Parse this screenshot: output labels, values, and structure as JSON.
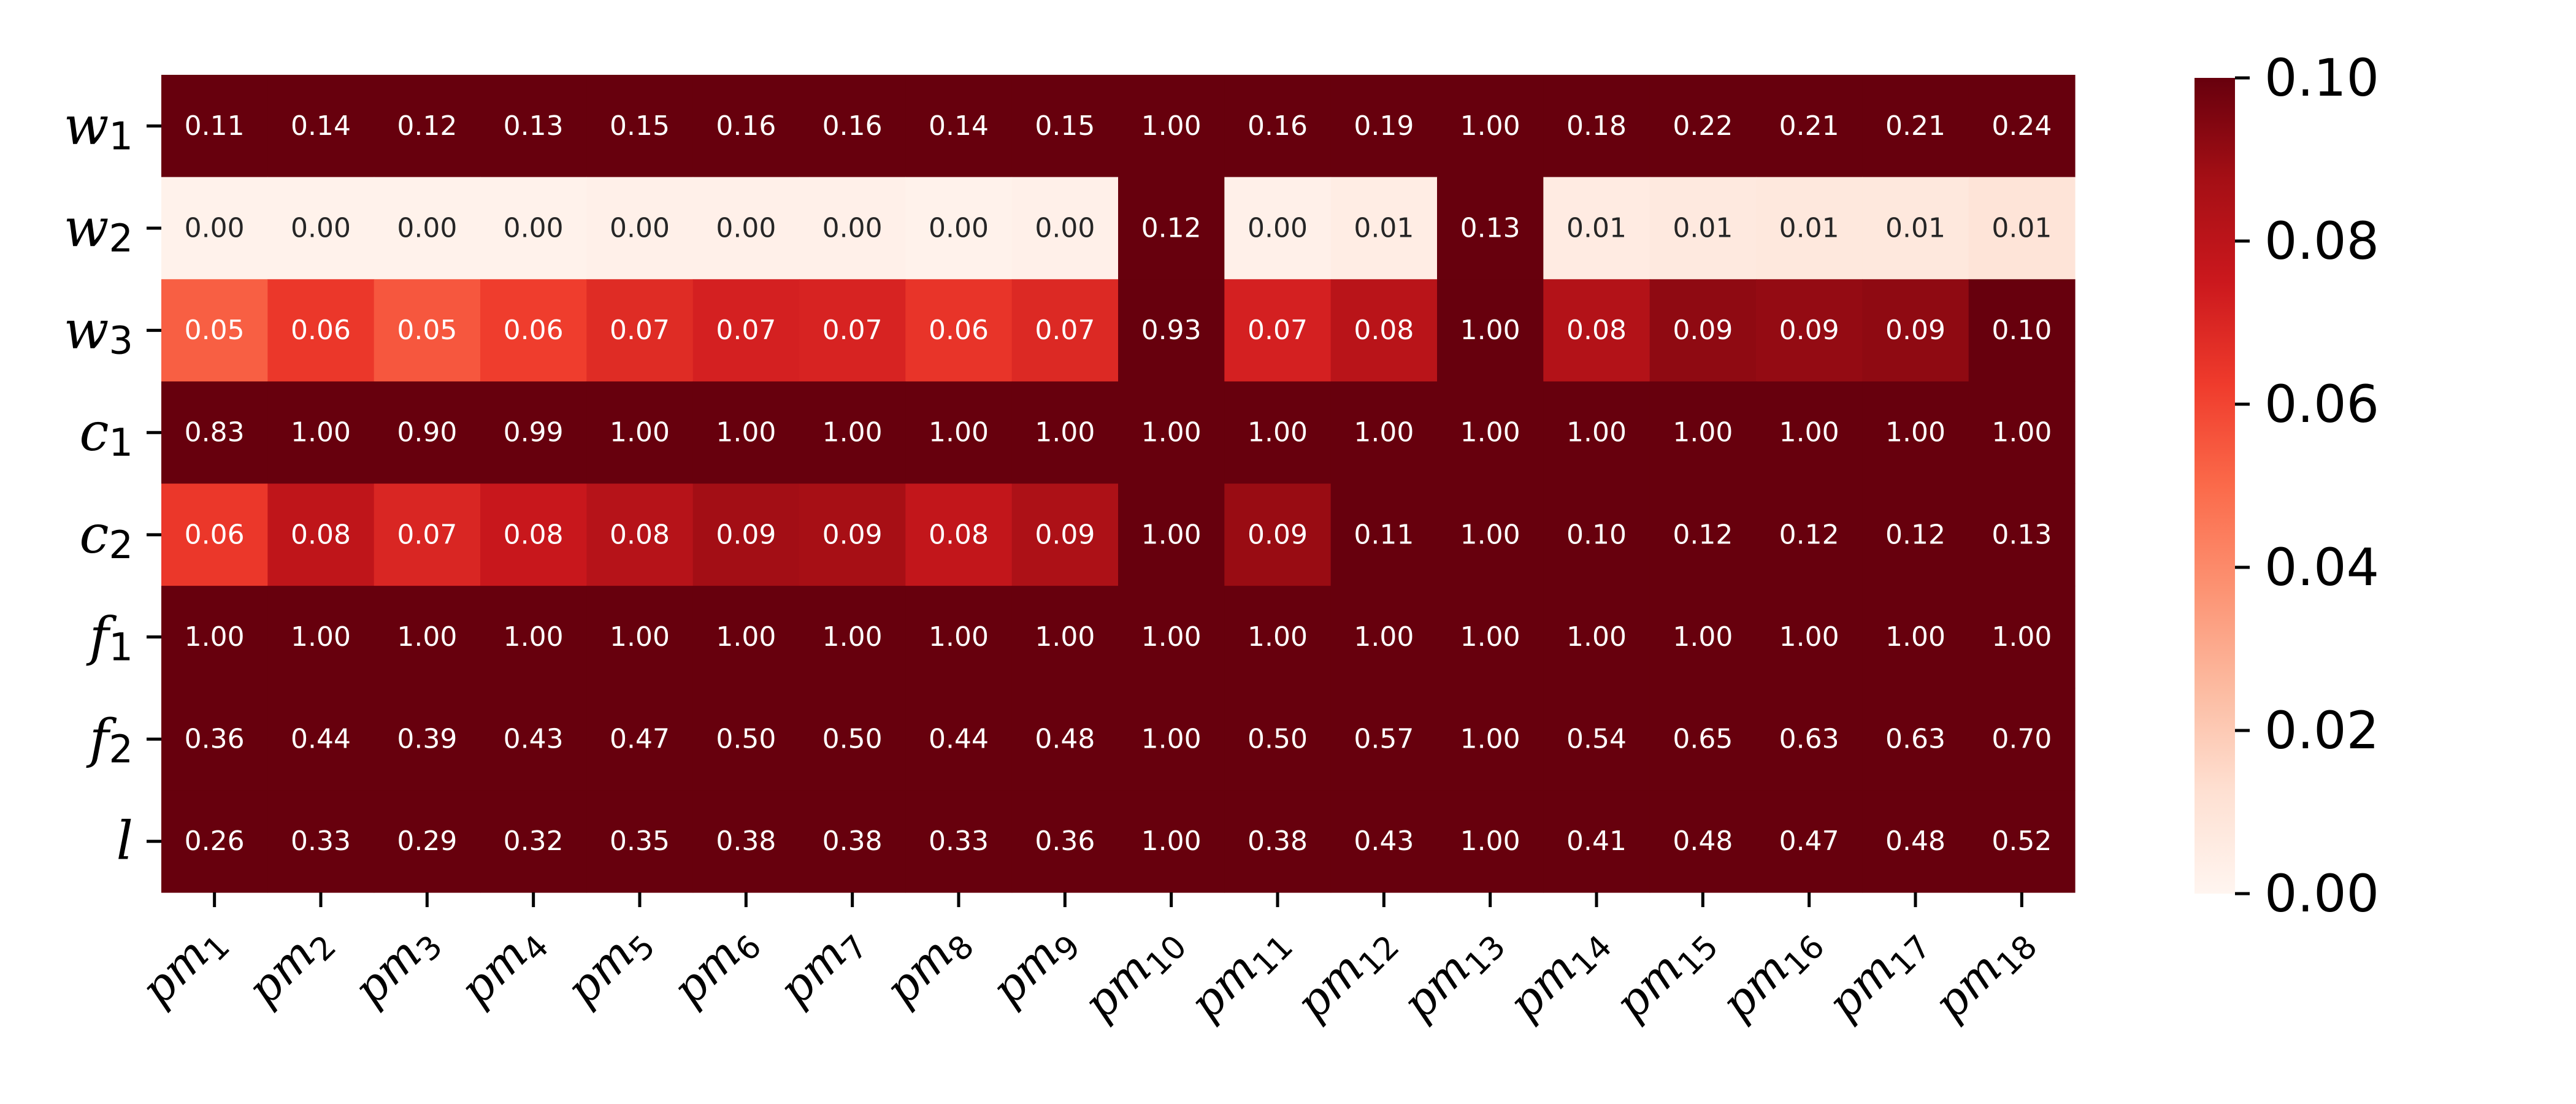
{
  "chart_data": {
    "type": "heatmap",
    "title": "",
    "xlabel": "",
    "ylabel": "",
    "colormap": "Reds",
    "colorbar": {
      "min": 0.0,
      "max": 0.1,
      "ticks": [
        "0.00",
        "0.02",
        "0.04",
        "0.06",
        "0.08",
        "0.10"
      ]
    },
    "rows": [
      {
        "base": "w",
        "sub": "1"
      },
      {
        "base": "w",
        "sub": "2"
      },
      {
        "base": "w",
        "sub": "3"
      },
      {
        "base": "c",
        "sub": "1"
      },
      {
        "base": "c",
        "sub": "2"
      },
      {
        "base": "f",
        "sub": "1"
      },
      {
        "base": "f",
        "sub": "2"
      },
      {
        "base": "l",
        "sub": ""
      }
    ],
    "columns": [
      {
        "base": "pm",
        "sub": "1"
      },
      {
        "base": "pm",
        "sub": "2"
      },
      {
        "base": "pm",
        "sub": "3"
      },
      {
        "base": "pm",
        "sub": "4"
      },
      {
        "base": "pm",
        "sub": "5"
      },
      {
        "base": "pm",
        "sub": "6"
      },
      {
        "base": "pm",
        "sub": "7"
      },
      {
        "base": "pm",
        "sub": "8"
      },
      {
        "base": "pm",
        "sub": "9"
      },
      {
        "base": "pm",
        "sub": "10"
      },
      {
        "base": "pm",
        "sub": "11"
      },
      {
        "base": "pm",
        "sub": "12"
      },
      {
        "base": "pm",
        "sub": "13"
      },
      {
        "base": "pm",
        "sub": "14"
      },
      {
        "base": "pm",
        "sub": "15"
      },
      {
        "base": "pm",
        "sub": "16"
      },
      {
        "base": "pm",
        "sub": "17"
      },
      {
        "base": "pm",
        "sub": "18"
      }
    ],
    "values": [
      [
        0.11,
        0.14,
        0.12,
        0.13,
        0.15,
        0.16,
        0.16,
        0.14,
        0.15,
        1.0,
        0.16,
        0.19,
        1.0,
        0.18,
        0.22,
        0.21,
        0.21,
        0.24
      ],
      [
        0.0,
        0.0,
        0.0,
        0.0,
        0.0,
        0.0,
        0.0,
        0.0,
        0.0,
        0.12,
        0.0,
        0.01,
        0.13,
        0.01,
        0.01,
        0.01,
        0.01,
        0.01
      ],
      [
        0.05,
        0.06,
        0.05,
        0.06,
        0.07,
        0.07,
        0.07,
        0.06,
        0.07,
        0.93,
        0.07,
        0.08,
        1.0,
        0.08,
        0.09,
        0.09,
        0.09,
        0.1
      ],
      [
        0.83,
        1.0,
        0.9,
        0.99,
        1.0,
        1.0,
        1.0,
        1.0,
        1.0,
        1.0,
        1.0,
        1.0,
        1.0,
        1.0,
        1.0,
        1.0,
        1.0,
        1.0
      ],
      [
        0.06,
        0.08,
        0.07,
        0.08,
        0.08,
        0.09,
        0.09,
        0.08,
        0.09,
        1.0,
        0.09,
        0.11,
        1.0,
        0.1,
        0.12,
        0.12,
        0.12,
        0.13
      ],
      [
        1.0,
        1.0,
        1.0,
        1.0,
        1.0,
        1.0,
        1.0,
        1.0,
        1.0,
        1.0,
        1.0,
        1.0,
        1.0,
        1.0,
        1.0,
        1.0,
        1.0,
        1.0
      ],
      [
        0.36,
        0.44,
        0.39,
        0.43,
        0.47,
        0.5,
        0.5,
        0.44,
        0.48,
        1.0,
        0.5,
        0.57,
        1.0,
        0.54,
        0.65,
        0.63,
        0.63,
        0.7
      ],
      [
        0.26,
        0.33,
        0.29,
        0.32,
        0.35,
        0.38,
        0.38,
        0.33,
        0.36,
        1.0,
        0.38,
        0.43,
        1.0,
        0.41,
        0.48,
        0.47,
        0.48,
        0.52
      ]
    ],
    "fine_values": [
      [
        null,
        null,
        null,
        null,
        null,
        null,
        null,
        null,
        null,
        null,
        null,
        null,
        null,
        null,
        null,
        null,
        null,
        null
      ],
      [
        0.002,
        0.002,
        0.002,
        0.002,
        0.003,
        0.003,
        0.003,
        0.002,
        0.003,
        null,
        0.003,
        0.005,
        null,
        0.006,
        0.007,
        0.008,
        0.008,
        0.01
      ],
      [
        0.053,
        0.064,
        0.055,
        0.062,
        0.068,
        0.072,
        0.071,
        0.065,
        0.069,
        null,
        0.072,
        0.081,
        null,
        0.083,
        0.092,
        0.091,
        0.092,
        0.1
      ],
      [
        null,
        null,
        null,
        null,
        null,
        null,
        null,
        null,
        null,
        null,
        null,
        null,
        null,
        null,
        null,
        null,
        null,
        null
      ],
      [
        0.064,
        0.079,
        0.07,
        0.076,
        0.082,
        0.088,
        0.087,
        0.078,
        0.085,
        null,
        0.09,
        0.105,
        null,
        0.1,
        0.115,
        0.115,
        0.115,
        0.125
      ],
      [
        null,
        null,
        null,
        null,
        null,
        null,
        null,
        null,
        null,
        null,
        null,
        null,
        null,
        null,
        null,
        null,
        null,
        null
      ],
      [
        null,
        null,
        null,
        null,
        null,
        null,
        null,
        null,
        null,
        null,
        null,
        null,
        null,
        null,
        null,
        null,
        null,
        null
      ],
      [
        null,
        null,
        null,
        null,
        null,
        null,
        null,
        null,
        null,
        null,
        null,
        null,
        null,
        null,
        null,
        null,
        null,
        null
      ]
    ]
  }
}
